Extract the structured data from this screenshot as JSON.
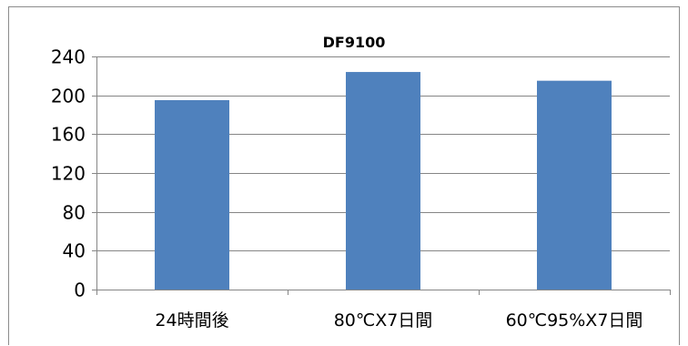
{
  "chart_data": {
    "type": "bar",
    "title": "DF9100",
    "categories": [
      "24時間後",
      "80℃X7日間",
      "60℃95%X7日間"
    ],
    "values": [
      195,
      224,
      215
    ],
    "ylim": [
      0,
      240
    ],
    "yticks": [
      "0",
      "40",
      "80",
      "120",
      "160",
      "200",
      "240"
    ],
    "grid": true,
    "legend": "none",
    "bar_color": "#4F81BD",
    "grid_color": "#868686",
    "axis_color": "#868686"
  }
}
